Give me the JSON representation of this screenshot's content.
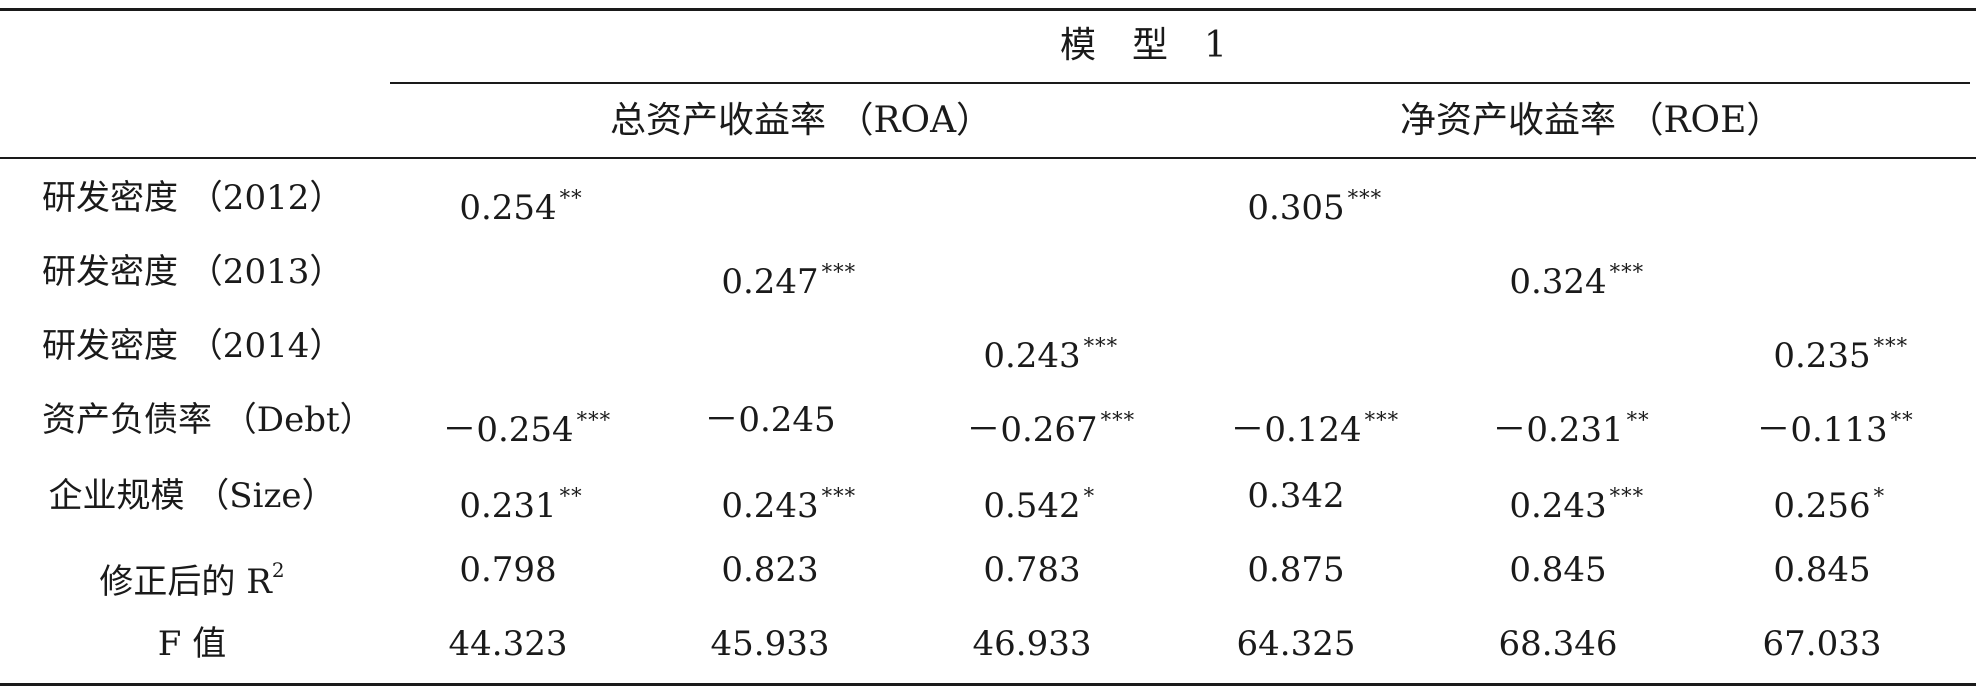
{
  "header": {
    "model_title": "模　型　1",
    "group_roa": "总资产收益率 （ROA）",
    "group_roe": "净资产收益率 （ROE）"
  },
  "rows": [
    {
      "label": "研发密度 （2012）",
      "cells": [
        {
          "v": "0.254",
          "s": "**"
        },
        null,
        null,
        {
          "v": "0.305",
          "s": "***"
        },
        null,
        null
      ]
    },
    {
      "label": "研发密度 （2013）",
      "cells": [
        null,
        {
          "v": "0.247",
          "s": "***"
        },
        null,
        null,
        {
          "v": "0.324",
          "s": "***"
        },
        null
      ]
    },
    {
      "label": "研发密度 （2014）",
      "cells": [
        null,
        null,
        {
          "v": "0.243",
          "s": "***"
        },
        null,
        null,
        {
          "v": "0.235",
          "s": "***"
        }
      ]
    },
    {
      "label": "资产负债率 （Debt）",
      "cells": [
        {
          "v": "－0.254",
          "s": "***"
        },
        {
          "v": "－0.245",
          "s": ""
        },
        {
          "v": "－0.267",
          "s": "***"
        },
        {
          "v": "－0.124",
          "s": "***"
        },
        {
          "v": "－0.231",
          "s": "**"
        },
        {
          "v": "－0.113",
          "s": "**"
        }
      ]
    },
    {
      "label": "企业规模 （Size）",
      "cells": [
        {
          "v": "0.231",
          "s": "**"
        },
        {
          "v": "0.243",
          "s": "***"
        },
        {
          "v": "0.542",
          "s": "*"
        },
        {
          "v": "0.342",
          "s": ""
        },
        {
          "v": "0.243",
          "s": "***"
        },
        {
          "v": "0.256",
          "s": "*"
        }
      ]
    },
    {
      "label": "修正后的 R",
      "label_sup": "2",
      "cells": [
        {
          "v": "0.798",
          "s": ""
        },
        {
          "v": "0.823",
          "s": ""
        },
        {
          "v": "0.783",
          "s": ""
        },
        {
          "v": "0.875",
          "s": ""
        },
        {
          "v": "0.845",
          "s": ""
        },
        {
          "v": "0.845",
          "s": ""
        }
      ]
    },
    {
      "label": "F 值",
      "cells": [
        {
          "v": "44.323",
          "s": ""
        },
        {
          "v": "45.933",
          "s": ""
        },
        {
          "v": "46.933",
          "s": ""
        },
        {
          "v": "64.325",
          "s": ""
        },
        {
          "v": "68.346",
          "s": ""
        },
        {
          "v": "67.033",
          "s": ""
        }
      ]
    }
  ]
}
